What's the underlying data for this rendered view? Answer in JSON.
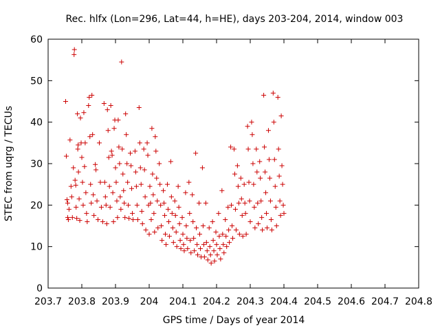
{
  "chart_data": {
    "type": "scatter",
    "title": "Rec. hlfx (Lon=296, Lat=44, h=HE), days 203-204, 2014, window 003",
    "xlabel": "GPS time / Days of year 2014",
    "ylabel": "STEC from uqrg / TECUs",
    "xlim": [
      203.7,
      204.8
    ],
    "ylim": [
      0,
      60
    ],
    "xticks": [
      "203.7",
      "203.8",
      "203.9",
      "204",
      "204.1",
      "204.2",
      "204.3",
      "204.4",
      "204.5",
      "204.6",
      "204.7",
      "204.8"
    ],
    "yticks": [
      "0",
      "10",
      "20",
      "30",
      "40",
      "50",
      "60"
    ],
    "grid": false,
    "legend": "none",
    "marker": "plus",
    "color": "#cc0000",
    "series": [
      {
        "points": [
          [
            203.752,
            45.0
          ],
          [
            203.754,
            31.8
          ],
          [
            203.756,
            21.3
          ],
          [
            203.758,
            17.0
          ],
          [
            203.76,
            16.5
          ],
          [
            203.758,
            20.5
          ],
          [
            203.762,
            19.0
          ],
          [
            203.765,
            35.7
          ],
          [
            203.768,
            24.5
          ],
          [
            203.77,
            22.0
          ],
          [
            203.772,
            17.0
          ],
          [
            203.775,
            29.0
          ],
          [
            203.777,
            56.3
          ],
          [
            203.778,
            57.5
          ],
          [
            203.78,
            26.0
          ],
          [
            203.782,
            24.8
          ],
          [
            203.783,
            19.5
          ],
          [
            203.785,
            16.8
          ],
          [
            203.787,
            42.0
          ],
          [
            203.788,
            33.5
          ],
          [
            203.789,
            34.5
          ],
          [
            203.79,
            28.0
          ],
          [
            203.792,
            21.5
          ],
          [
            203.794,
            16.3
          ],
          [
            203.796,
            41.0
          ],
          [
            203.798,
            35.0
          ],
          [
            203.8,
            31.5
          ],
          [
            203.802,
            25.5
          ],
          [
            203.804,
            20.0
          ],
          [
            203.806,
            42.3
          ],
          [
            203.808,
            29.3
          ],
          [
            203.81,
            35.0
          ],
          [
            203.812,
            23.0
          ],
          [
            203.814,
            18.0
          ],
          [
            203.816,
            16.0
          ],
          [
            203.82,
            44.0
          ],
          [
            203.822,
            46.0
          ],
          [
            203.824,
            36.5
          ],
          [
            203.826,
            25.0
          ],
          [
            203.828,
            20.5
          ],
          [
            203.83,
            46.5
          ],
          [
            203.832,
            37.0
          ],
          [
            203.834,
            22.5
          ],
          [
            203.836,
            17.5
          ],
          [
            203.84,
            29.8
          ],
          [
            203.842,
            28.5
          ],
          [
            203.845,
            21.0
          ],
          [
            203.848,
            16.5
          ],
          [
            203.852,
            35.0
          ],
          [
            203.855,
            25.5
          ],
          [
            203.858,
            19.5
          ],
          [
            203.862,
            16.0
          ],
          [
            203.866,
            44.5
          ],
          [
            203.868,
            25.5
          ],
          [
            203.87,
            22.0
          ],
          [
            203.872,
            20.0
          ],
          [
            203.874,
            15.5
          ],
          [
            203.876,
            43.0
          ],
          [
            203.878,
            38.0
          ],
          [
            203.88,
            31.5
          ],
          [
            203.882,
            24.5
          ],
          [
            203.884,
            19.5
          ],
          [
            203.886,
            44.0
          ],
          [
            203.888,
            33.0
          ],
          [
            203.89,
            32.0
          ],
          [
            203.892,
            23.0
          ],
          [
            203.894,
            16.0
          ],
          [
            203.896,
            38.5
          ],
          [
            203.898,
            40.5
          ],
          [
            203.9,
            29.0
          ],
          [
            203.902,
            25.5
          ],
          [
            203.904,
            21.0
          ],
          [
            203.906,
            17.0
          ],
          [
            203.908,
            40.5
          ],
          [
            203.91,
            34.0
          ],
          [
            203.912,
            30.0
          ],
          [
            203.914,
            22.0
          ],
          [
            203.916,
            19.0
          ],
          [
            203.918,
            54.5
          ],
          [
            203.92,
            33.5
          ],
          [
            203.922,
            27.5
          ],
          [
            203.924,
            23.5
          ],
          [
            203.926,
            20.5
          ],
          [
            203.928,
            17.0
          ],
          [
            203.93,
            42.0
          ],
          [
            203.932,
            37.0
          ],
          [
            203.934,
            30.0
          ],
          [
            203.936,
            25.5
          ],
          [
            203.938,
            20.0
          ],
          [
            203.94,
            16.8
          ],
          [
            203.944,
            32.5
          ],
          [
            203.946,
            29.5
          ],
          [
            203.948,
            24.0
          ],
          [
            203.95,
            18.0
          ],
          [
            203.952,
            16.5
          ],
          [
            203.958,
            33.0
          ],
          [
            203.96,
            28.0
          ],
          [
            203.962,
            24.5
          ],
          [
            203.964,
            20.0
          ],
          [
            203.966,
            16.5
          ],
          [
            203.97,
            43.5
          ],
          [
            203.972,
            35.0
          ],
          [
            203.974,
            29.0
          ],
          [
            203.976,
            25.0
          ],
          [
            203.978,
            18.5
          ],
          [
            203.98,
            15.5
          ],
          [
            203.984,
            33.5
          ],
          [
            203.986,
            28.5
          ],
          [
            203.988,
            22.0
          ],
          [
            203.99,
            14.0
          ],
          [
            203.994,
            35.0
          ],
          [
            203.996,
            32.0
          ],
          [
            203.998,
            20.0
          ],
          [
            204.0,
            13.0
          ],
          [
            204.002,
            24.5
          ],
          [
            204.004,
            20.5
          ],
          [
            204.006,
            16.5
          ],
          [
            204.008,
            38.5
          ],
          [
            204.01,
            27.5
          ],
          [
            204.012,
            22.5
          ],
          [
            204.014,
            18.0
          ],
          [
            204.016,
            13.5
          ],
          [
            204.018,
            36.5
          ],
          [
            204.02,
            33.0
          ],
          [
            204.022,
            26.5
          ],
          [
            204.024,
            21.0
          ],
          [
            204.026,
            14.5
          ],
          [
            204.03,
            30.0
          ],
          [
            204.032,
            25.0
          ],
          [
            204.034,
            20.0
          ],
          [
            204.036,
            15.0
          ],
          [
            204.038,
            11.5
          ],
          [
            204.042,
            23.5
          ],
          [
            204.044,
            20.5
          ],
          [
            204.046,
            17.5
          ],
          [
            204.048,
            13.0
          ],
          [
            204.05,
            10.5
          ],
          [
            204.054,
            25.0
          ],
          [
            204.056,
            19.0
          ],
          [
            204.058,
            16.0
          ],
          [
            204.06,
            12.5
          ],
          [
            204.064,
            30.5
          ],
          [
            204.066,
            22.0
          ],
          [
            204.068,
            18.0
          ],
          [
            204.07,
            14.5
          ],
          [
            204.072,
            11.0
          ],
          [
            204.076,
            21.0
          ],
          [
            204.078,
            17.5
          ],
          [
            204.08,
            13.5
          ],
          [
            204.082,
            10.0
          ],
          [
            204.086,
            24.5
          ],
          [
            204.088,
            19.5
          ],
          [
            204.09,
            15.5
          ],
          [
            204.092,
            11.5
          ],
          [
            204.094,
            9.5
          ],
          [
            204.098,
            17.0
          ],
          [
            204.1,
            13.0
          ],
          [
            204.102,
            10.5
          ],
          [
            204.104,
            9.0
          ],
          [
            204.108,
            23.0
          ],
          [
            204.11,
            15.0
          ],
          [
            204.112,
            12.0
          ],
          [
            204.114,
            9.5
          ],
          [
            204.118,
            25.5
          ],
          [
            204.12,
            18.0
          ],
          [
            204.122,
            11.5
          ],
          [
            204.124,
            8.5
          ],
          [
            204.128,
            22.5
          ],
          [
            204.13,
            16.0
          ],
          [
            204.132,
            12.0
          ],
          [
            204.134,
            9.0
          ],
          [
            204.138,
            32.5
          ],
          [
            204.14,
            14.5
          ],
          [
            204.142,
            10.5
          ],
          [
            204.144,
            8.0
          ],
          [
            204.148,
            20.5
          ],
          [
            204.15,
            13.0
          ],
          [
            204.152,
            9.5
          ],
          [
            204.154,
            7.5
          ],
          [
            204.158,
            29.0
          ],
          [
            204.16,
            15.0
          ],
          [
            204.162,
            10.5
          ],
          [
            204.164,
            7.5
          ],
          [
            204.168,
            20.5
          ],
          [
            204.17,
            11.0
          ],
          [
            204.172,
            9.0
          ],
          [
            204.174,
            6.8
          ],
          [
            204.178,
            14.5
          ],
          [
            204.18,
            10.0
          ],
          [
            204.182,
            8.0
          ],
          [
            204.184,
            6.0
          ],
          [
            204.188,
            16.0
          ],
          [
            204.19,
            11.5
          ],
          [
            204.192,
            9.0
          ],
          [
            204.194,
            6.5
          ],
          [
            204.198,
            13.5
          ],
          [
            204.2,
            10.5
          ],
          [
            204.202,
            8.0
          ],
          [
            204.206,
            18.0
          ],
          [
            204.208,
            12.5
          ],
          [
            204.21,
            9.5
          ],
          [
            204.212,
            7.0
          ],
          [
            204.216,
            23.5
          ],
          [
            204.218,
            13.0
          ],
          [
            204.22,
            10.5
          ],
          [
            204.222,
            8.5
          ],
          [
            204.226,
            16.5
          ],
          [
            204.228,
            12.5
          ],
          [
            204.23,
            10.0
          ],
          [
            204.234,
            19.5
          ],
          [
            204.236,
            14.0
          ],
          [
            204.238,
            11.0
          ],
          [
            204.242,
            34.0
          ],
          [
            204.244,
            20.0
          ],
          [
            204.246,
            15.0
          ],
          [
            204.248,
            12.0
          ],
          [
            204.252,
            33.5
          ],
          [
            204.254,
            27.5
          ],
          [
            204.256,
            19.0
          ],
          [
            204.258,
            14.0
          ],
          [
            204.262,
            29.5
          ],
          [
            204.264,
            24.5
          ],
          [
            204.266,
            20.5
          ],
          [
            204.268,
            13.0
          ],
          [
            204.272,
            26.5
          ],
          [
            204.274,
            21.5
          ],
          [
            204.276,
            17.5
          ],
          [
            204.278,
            12.5
          ],
          [
            204.282,
            25.0
          ],
          [
            204.284,
            20.5
          ],
          [
            204.286,
            18.0
          ],
          [
            204.288,
            13.0
          ],
          [
            204.292,
            39.0
          ],
          [
            204.294,
            33.5
          ],
          [
            204.296,
            25.5
          ],
          [
            204.298,
            21.0
          ],
          [
            204.3,
            16.0
          ],
          [
            204.304,
            40.0
          ],
          [
            204.306,
            37.0
          ],
          [
            204.308,
            30.0
          ],
          [
            204.31,
            25.0
          ],
          [
            204.312,
            19.5
          ],
          [
            204.314,
            14.5
          ],
          [
            204.318,
            33.5
          ],
          [
            204.32,
            28.0
          ],
          [
            204.322,
            20.5
          ],
          [
            204.324,
            15.5
          ],
          [
            204.328,
            30.5
          ],
          [
            204.33,
            26.5
          ],
          [
            204.332,
            21.0
          ],
          [
            204.334,
            17.0
          ],
          [
            204.336,
            14.0
          ],
          [
            204.34,
            46.5
          ],
          [
            204.342,
            34.0
          ],
          [
            204.344,
            28.0
          ],
          [
            204.346,
            23.0
          ],
          [
            204.348,
            18.0
          ],
          [
            204.35,
            14.5
          ],
          [
            204.354,
            38.0
          ],
          [
            204.356,
            31.0
          ],
          [
            204.358,
            26.5
          ],
          [
            204.36,
            21.0
          ],
          [
            204.362,
            16.5
          ],
          [
            204.364,
            14.0
          ],
          [
            204.368,
            47.0
          ],
          [
            204.37,
            40.0
          ],
          [
            204.372,
            31.0
          ],
          [
            204.374,
            24.5
          ],
          [
            204.376,
            19.5
          ],
          [
            204.378,
            15.0
          ],
          [
            204.382,
            46.0
          ],
          [
            204.384,
            33.5
          ],
          [
            204.386,
            27.0
          ],
          [
            204.388,
            21.0
          ],
          [
            204.39,
            17.5
          ],
          [
            204.392,
            41.5
          ],
          [
            204.394,
            29.5
          ],
          [
            204.396,
            25.0
          ],
          [
            204.398,
            20.0
          ],
          [
            204.4,
            18.0
          ]
        ]
      }
    ]
  }
}
